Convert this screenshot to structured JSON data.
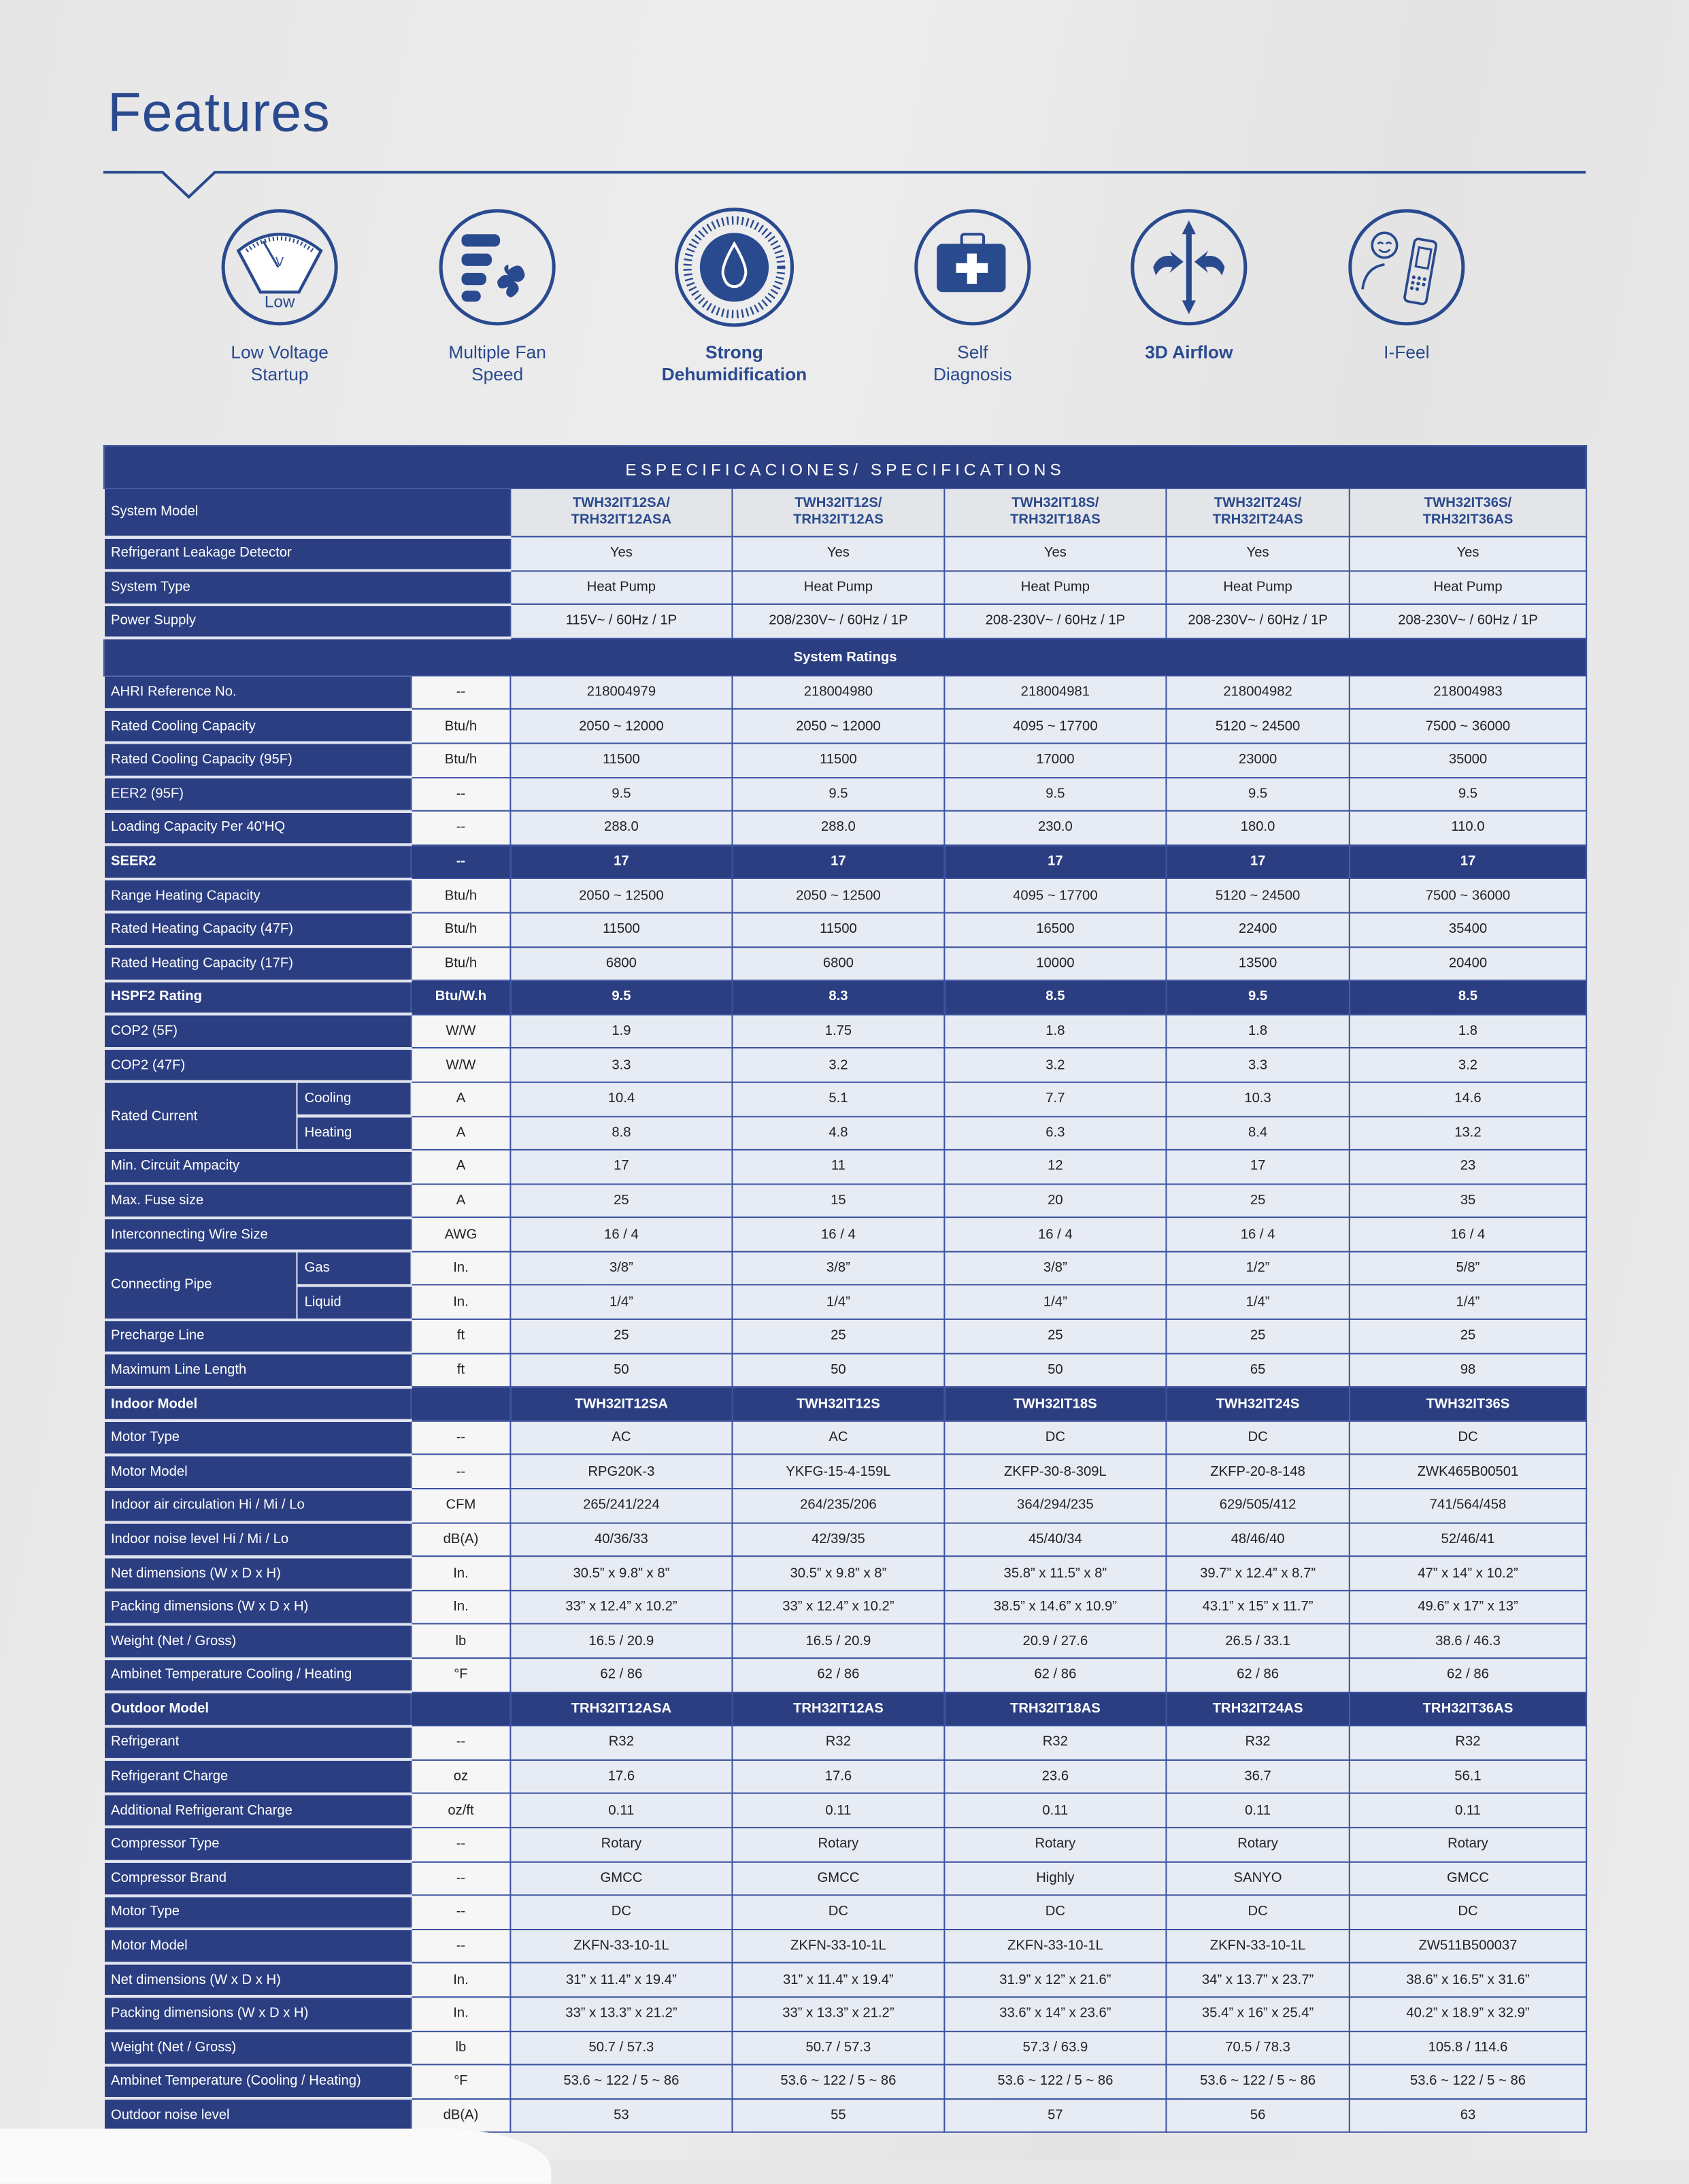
{
  "title": "Features",
  "accent_color": "#2a4a8f",
  "table_navy": "#2b3e82",
  "features": [
    {
      "icon": "low-voltage-gauge-icon",
      "label1": "Low Voltage",
      "label2": "Startup",
      "gauge_letter": "V",
      "gauge_text": "Low",
      "bold": false
    },
    {
      "icon": "fan-speed-icon",
      "label1": "Multiple Fan",
      "label2": "Speed",
      "bold": false
    },
    {
      "icon": "water-drop-icon",
      "label1": "Strong",
      "label2": "Dehumidification",
      "bold": true
    },
    {
      "icon": "first-aid-kit-icon",
      "label1": "Self",
      "label2": "Diagnosis",
      "bold": false
    },
    {
      "icon": "airflow-arrows-icon",
      "label1": "3D Airflow",
      "label2": "",
      "bold": true
    },
    {
      "icon": "person-remote-icon",
      "label1": "I-Feel",
      "label2": "",
      "bold": false
    }
  ],
  "spec": {
    "banner": "ESPECIFICACIONES/ SPECIFICATIONS",
    "system_model_label": "System Model",
    "system_models": [
      [
        "TWH32IT12SA/",
        "TRH32IT12ASA"
      ],
      [
        "TWH32IT12S/",
        "TRH32IT12AS"
      ],
      [
        "TWH32IT18S/",
        "TRH32IT18AS"
      ],
      [
        "TWH32IT24S/",
        "TRH32IT24AS"
      ],
      [
        "TWH32IT36S/",
        "TRH32IT36AS"
      ]
    ],
    "top_rows": [
      {
        "label": "Refrigerant Leakage Detector",
        "values": [
          "Yes",
          "Yes",
          "Yes",
          "Yes",
          "Yes"
        ]
      },
      {
        "label": "System Type",
        "values": [
          "Heat Pump",
          "Heat Pump",
          "Heat Pump",
          "Heat Pump",
          "Heat Pump"
        ]
      },
      {
        "label": "Power Supply",
        "values": [
          "115V~ / 60Hz / 1P",
          "208/230V~ / 60Hz / 1P",
          "208-230V~ / 60Hz / 1P",
          "208-230V~ / 60Hz / 1P",
          "208-230V~ / 60Hz / 1P"
        ]
      }
    ],
    "section_title": "System Ratings",
    "rows": [
      {
        "label": "AHRI Reference No.",
        "unit": "--",
        "values": [
          "218004979",
          "218004980",
          "218004981",
          "218004982",
          "218004983"
        ]
      },
      {
        "label": "Rated Cooling Capacity",
        "unit": "Btu/h",
        "values": [
          "2050 ~ 12000",
          "2050 ~ 12000",
          "4095 ~ 17700",
          "5120 ~ 24500",
          "7500 ~ 36000"
        ]
      },
      {
        "label": "Rated Cooling Capacity (95F)",
        "unit": "Btu/h",
        "values": [
          "11500",
          "11500",
          "17000",
          "23000",
          "35000"
        ]
      },
      {
        "label": "EER2 (95F)",
        "unit": "--",
        "values": [
          "9.5",
          "9.5",
          "9.5",
          "9.5",
          "9.5"
        ]
      },
      {
        "label": "Loading Capacity Per 40'HQ",
        "unit": "--",
        "values": [
          "288.0",
          "288.0",
          "230.0",
          "180.0",
          "110.0"
        ]
      },
      {
        "label": "SEER2",
        "unit": "--",
        "values": [
          "17",
          "17",
          "17",
          "17",
          "17"
        ],
        "highlight": true
      },
      {
        "label": "Range Heating Capacity",
        "unit": "Btu/h",
        "values": [
          "2050 ~ 12500",
          "2050 ~ 12500",
          "4095 ~ 17700",
          "5120 ~ 24500",
          "7500 ~ 36000"
        ]
      },
      {
        "label": "Rated Heating Capacity (47F)",
        "unit": "Btu/h",
        "values": [
          "11500",
          "11500",
          "16500",
          "22400",
          "35400"
        ]
      },
      {
        "label": "Rated Heating Capacity (17F)",
        "unit": "Btu/h",
        "values": [
          "6800",
          "6800",
          "10000",
          "13500",
          "20400"
        ]
      },
      {
        "label": "HSPF2 Rating",
        "unit": "Btu/W.h",
        "values": [
          "9.5",
          "8.3",
          "8.5",
          "9.5",
          "8.5"
        ],
        "highlight": true
      },
      {
        "label": "COP2 (5F)",
        "unit": "W/W",
        "values": [
          "1.9",
          "1.75",
          "1.8",
          "1.8",
          "1.8"
        ]
      },
      {
        "label": "COP2 (47F)",
        "unit": "W/W",
        "values": [
          "3.3",
          "3.2",
          "3.2",
          "3.3",
          "3.2"
        ]
      },
      {
        "group": "Rated Current",
        "sub": "Cooling",
        "unit": "A",
        "values": [
          "10.4",
          "5.1",
          "7.7",
          "10.3",
          "14.6"
        ]
      },
      {
        "sub": "Heating",
        "unit": "A",
        "values": [
          "8.8",
          "4.8",
          "6.3",
          "8.4",
          "13.2"
        ]
      },
      {
        "label": "Min. Circuit Ampacity",
        "unit": "A",
        "values": [
          "17",
          "11",
          "12",
          "17",
          "23"
        ]
      },
      {
        "label": "Max. Fuse size",
        "unit": "A",
        "values": [
          "25",
          "15",
          "20",
          "25",
          "35"
        ]
      },
      {
        "label": "Interconnecting Wire Size",
        "unit": "AWG",
        "values": [
          "16 / 4",
          "16 / 4",
          "16 / 4",
          "16 / 4",
          "16 / 4"
        ]
      },
      {
        "group": "Connecting Pipe",
        "sub": "Gas",
        "unit": "In.",
        "values": [
          "3/8”",
          "3/8”",
          "3/8”",
          "1/2”",
          "5/8”"
        ]
      },
      {
        "sub": "Liquid",
        "unit": "In.",
        "values": [
          "1/4”",
          "1/4”",
          "1/4”",
          "1/4”",
          "1/4”"
        ]
      },
      {
        "label": "Precharge Line",
        "unit": "ft",
        "values": [
          "25",
          "25",
          "25",
          "25",
          "25"
        ]
      },
      {
        "label": "Maximum Line Length",
        "unit": "ft",
        "values": [
          "50",
          "50",
          "50",
          "65",
          "98"
        ]
      },
      {
        "label": "Indoor Model",
        "unit": "",
        "values": [
          "TWH32IT12SA",
          "TWH32IT12S",
          "TWH32IT18S",
          "TWH32IT24S",
          "TWH32IT36S"
        ],
        "highlight": true
      },
      {
        "label": "Motor Type",
        "unit": "--",
        "values": [
          "AC",
          "AC",
          "DC",
          "DC",
          "DC"
        ]
      },
      {
        "label": "Motor Model",
        "unit": "--",
        "values": [
          "RPG20K-3",
          "YKFG-15-4-159L",
          "ZKFP-30-8-309L",
          "ZKFP-20-8-148",
          "ZWK465B00501"
        ]
      },
      {
        "label": "Indoor air circulation Hi / Mi / Lo",
        "unit": "CFM",
        "values": [
          "265/241/224",
          "264/235/206",
          "364/294/235",
          "629/505/412",
          "741/564/458"
        ]
      },
      {
        "label": "Indoor noise level Hi / Mi / Lo",
        "unit": "dB(A)",
        "values": [
          "40/36/33",
          "42/39/35",
          "45/40/34",
          "48/46/40",
          "52/46/41"
        ]
      },
      {
        "label": "Net dimensions (W x D x H)",
        "unit": "In.",
        "values": [
          "30.5” x 9.8” x 8”",
          "30.5” x 9.8” x 8”",
          "35.8” x 11.5” x 8”",
          "39.7” x 12.4” x 8.7”",
          "47” x 14” x 10.2”"
        ]
      },
      {
        "label": "Packing dimensions (W x D x H)",
        "unit": "In.",
        "values": [
          "33” x 12.4” x 10.2”",
          "33” x 12.4” x 10.2”",
          "38.5” x 14.6” x 10.9”",
          "43.1” x 15” x 11.7”",
          "49.6” x 17” x 13”"
        ]
      },
      {
        "label": "Weight (Net / Gross)",
        "unit": "lb",
        "values": [
          "16.5 / 20.9",
          "16.5 / 20.9",
          "20.9 / 27.6",
          "26.5 / 33.1",
          "38.6 / 46.3"
        ]
      },
      {
        "label": "Ambinet Temperature Cooling / Heating",
        "unit": "°F",
        "values": [
          "62 / 86",
          "62 / 86",
          "62 / 86",
          "62 / 86",
          "62 / 86"
        ]
      },
      {
        "label": "Outdoor Model",
        "unit": "",
        "values": [
          "TRH32IT12ASA",
          "TRH32IT12AS",
          "TRH32IT18AS",
          "TRH32IT24AS",
          "TRH32IT36AS"
        ],
        "highlight": true
      },
      {
        "label": "Refrigerant",
        "unit": "--",
        "values": [
          "R32",
          "R32",
          "R32",
          "R32",
          "R32"
        ]
      },
      {
        "label": "Refrigerant Charge",
        "unit": "oz",
        "values": [
          "17.6",
          "17.6",
          "23.6",
          "36.7",
          "56.1"
        ]
      },
      {
        "label": "Additional Refrigerant Charge",
        "unit": "oz/ft",
        "values": [
          "0.11",
          "0.11",
          "0.11",
          "0.11",
          "0.11"
        ]
      },
      {
        "label": "Compressor Type",
        "unit": "--",
        "values": [
          "Rotary",
          "Rotary",
          "Rotary",
          "Rotary",
          "Rotary"
        ]
      },
      {
        "label": "Compressor Brand",
        "unit": "--",
        "values": [
          "GMCC",
          "GMCC",
          "Highly",
          "SANYO",
          "GMCC"
        ]
      },
      {
        "label": "Motor Type",
        "unit": "--",
        "values": [
          "DC",
          "DC",
          "DC",
          "DC",
          "DC"
        ]
      },
      {
        "label": "Motor Model",
        "unit": "--",
        "values": [
          "ZKFN-33-10-1L",
          "ZKFN-33-10-1L",
          "ZKFN-33-10-1L",
          "ZKFN-33-10-1L",
          "ZW511B500037"
        ]
      },
      {
        "label": "Net dimensions (W x D x H)",
        "unit": "In.",
        "values": [
          "31” x 11.4” x 19.4”",
          "31” x 11.4” x 19.4”",
          "31.9” x 12” x 21.6”",
          "34” x 13.7” x 23.7”",
          "38.6” x 16.5” x 31.6”"
        ]
      },
      {
        "label": "Packing dimensions (W x D x H)",
        "unit": "In.",
        "values": [
          "33” x 13.3” x 21.2”",
          "33” x 13.3” x 21.2”",
          "33.6” x 14” x 23.6”",
          "35.4” x 16” x 25.4”",
          "40.2” x 18.9” x 32.9”"
        ]
      },
      {
        "label": "Weight (Net / Gross)",
        "unit": "lb",
        "values": [
          "50.7 / 57.3",
          "50.7 / 57.3",
          "57.3 / 63.9",
          "70.5 / 78.3",
          "105.8 / 114.6"
        ]
      },
      {
        "label": "Ambinet Temperature (Cooling / Heating)",
        "unit": "°F",
        "values": [
          "53.6 ~ 122 / 5 ~ 86",
          "53.6 ~ 122 / 5 ~ 86",
          "53.6 ~ 122 / 5 ~ 86",
          "53.6 ~ 122 / 5 ~ 86",
          "53.6 ~ 122 / 5 ~ 86"
        ]
      },
      {
        "label": "Outdoor noise level",
        "unit": "dB(A)",
        "values": [
          "53",
          "55",
          "57",
          "56",
          "63"
        ]
      }
    ]
  }
}
